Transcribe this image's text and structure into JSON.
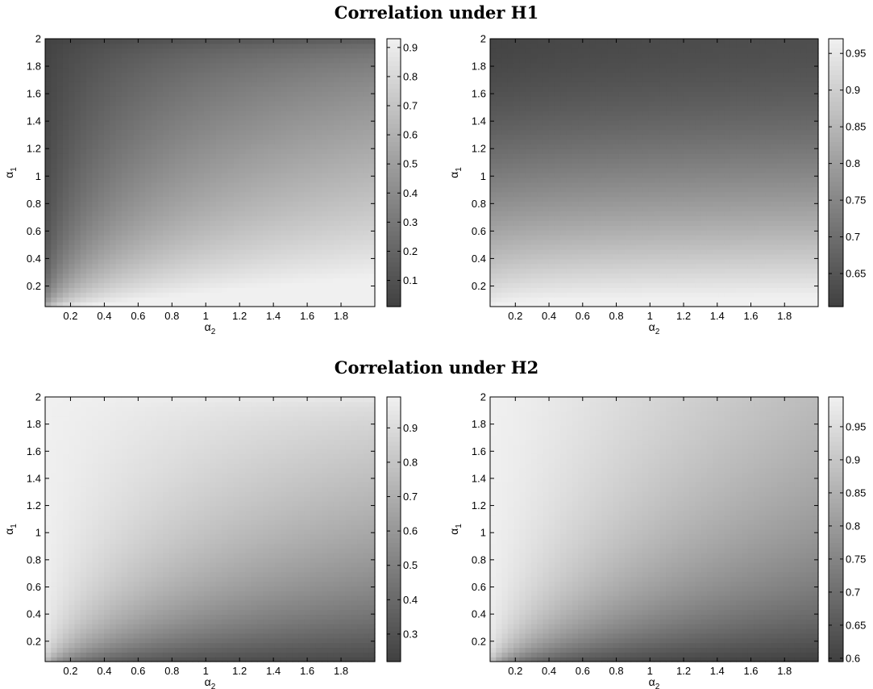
{
  "sections": [
    {
      "title": "Correlation under H1"
    },
    {
      "title": "Correlation under H2"
    }
  ],
  "chart_data": [
    {
      "type": "heatmap",
      "section": "Correlation under H1",
      "xlabel": "α2",
      "ylabel": "α1",
      "xlim": [
        0.05,
        2.0
      ],
      "ylim": [
        0.05,
        2.0
      ],
      "xticks": [
        "0.2",
        "0.4",
        "0.6",
        "0.8",
        "1",
        "1.2",
        "1.4",
        "1.6",
        "1.8"
      ],
      "yticks": [
        "0.2",
        "0.4",
        "0.6",
        "0.8",
        "1",
        "1.2",
        "1.4",
        "1.6",
        "1.8",
        "2"
      ],
      "colorbar": {
        "min": 0.01,
        "max": 0.93,
        "ticks": [
          "0.1",
          "0.2",
          "0.3",
          "0.4",
          "0.5",
          "0.6",
          "0.7",
          "0.8",
          "0.9"
        ]
      },
      "colormap": "gray",
      "model": {
        "kind": "ratio",
        "min": 0.01,
        "max": 0.93,
        "a": 2.0,
        "b": 1.0
      },
      "grid": false
    },
    {
      "type": "heatmap",
      "section": "Correlation under H1",
      "xlabel": "α2",
      "ylabel": "α1",
      "xlim": [
        0.05,
        2.0
      ],
      "ylim": [
        0.05,
        2.0
      ],
      "xticks": [
        "0.2",
        "0.4",
        "0.6",
        "0.8",
        "1",
        "1.2",
        "1.4",
        "1.6",
        "1.8"
      ],
      "yticks": [
        "0.2",
        "0.4",
        "0.6",
        "0.8",
        "1",
        "1.2",
        "1.4",
        "1.6",
        "1.8",
        "2"
      ],
      "colorbar": {
        "min": 0.605,
        "max": 0.97,
        "ticks": [
          "0.65",
          "0.7",
          "0.75",
          "0.8",
          "0.85",
          "0.9",
          "0.95"
        ]
      },
      "colormap": "gray",
      "model": {
        "kind": "ratio",
        "min": 0.605,
        "max": 0.97,
        "a": 0.35,
        "b": 1.0
      },
      "grid": false
    },
    {
      "type": "heatmap",
      "section": "Correlation under H2",
      "xlabel": "α2",
      "ylabel": "α1",
      "xlim": [
        0.05,
        2.0
      ],
      "ylim": [
        0.05,
        2.0
      ],
      "xticks": [
        "0.2",
        "0.4",
        "0.6",
        "0.8",
        "1",
        "1.2",
        "1.4",
        "1.6",
        "1.8"
      ],
      "yticks": [
        "0.2",
        "0.4",
        "0.6",
        "0.8",
        "1",
        "1.2",
        "1.4",
        "1.6",
        "1.8",
        "2"
      ],
      "colorbar": {
        "min": 0.22,
        "max": 0.99,
        "ticks": [
          "0.3",
          "0.4",
          "0.5",
          "0.6",
          "0.7",
          "0.8",
          "0.9"
        ]
      },
      "colormap": "gray",
      "model": {
        "kind": "ratio",
        "min": 0.22,
        "max": 0.99,
        "a": 0.1,
        "b": 1.25
      },
      "grid": false
    },
    {
      "type": "heatmap",
      "section": "Correlation under H2",
      "xlabel": "α2",
      "ylabel": "α1",
      "xlim": [
        0.05,
        2.0
      ],
      "ylim": [
        0.05,
        2.0
      ],
      "xticks": [
        "0.2",
        "0.4",
        "0.6",
        "0.8",
        "1",
        "1.2",
        "1.4",
        "1.6",
        "1.8"
      ],
      "yticks": [
        "0.2",
        "0.4",
        "0.6",
        "0.8",
        "1",
        "1.2",
        "1.4",
        "1.6",
        "1.8",
        "2"
      ],
      "colorbar": {
        "min": 0.595,
        "max": 0.995,
        "ticks": [
          "0.6",
          "0.65",
          "0.7",
          "0.75",
          "0.8",
          "0.85",
          "0.9",
          "0.95"
        ]
      },
      "colormap": "gray",
      "model": {
        "kind": "ratio",
        "min": 0.595,
        "max": 0.995,
        "a": 0.02,
        "b": 1.0
      },
      "grid": false
    }
  ]
}
